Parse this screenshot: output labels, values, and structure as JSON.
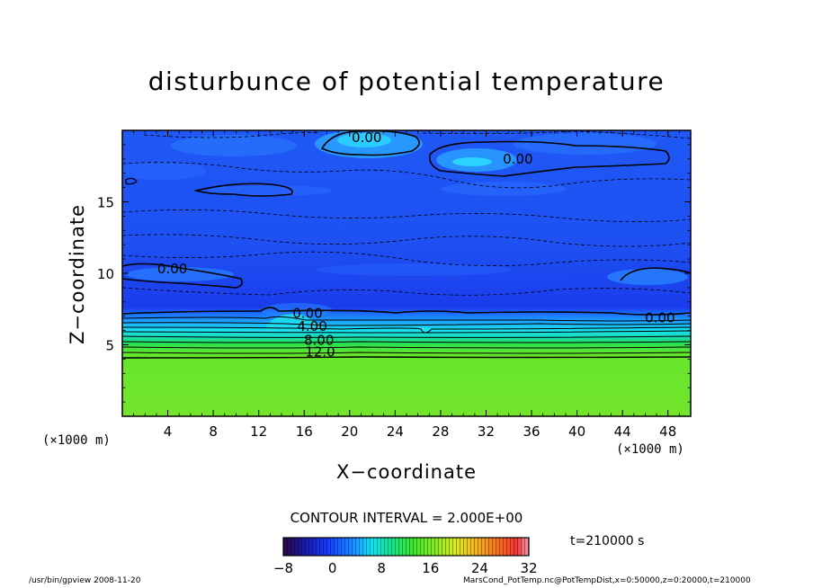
{
  "chart_data": {
    "type": "heatmap",
    "title": "disturbunce of potential temperature",
    "xlabel": "X−coordinate",
    "ylabel": "Z−coordinate",
    "x_unit_left": "(×1000 m)",
    "x_unit_right": "(×1000 m)",
    "xlim": [
      0,
      50
    ],
    "ylim": [
      0,
      20
    ],
    "xticks": [
      4,
      8,
      12,
      16,
      20,
      24,
      28,
      32,
      36,
      40,
      44,
      48
    ],
    "yticks": [
      5,
      10,
      15
    ],
    "contour_interval_label": "CONTOUR INTERVAL = 2.000E+00",
    "contour_labels": [
      {
        "text": "0.00",
        "x": 21.5,
        "z": 19.5
      },
      {
        "text": "0.00",
        "x": 34.8,
        "z": 18.0
      },
      {
        "text": "0.00",
        "x": 4.4,
        "z": 10.3
      },
      {
        "text": "0.00",
        "x": 16.3,
        "z": 7.2
      },
      {
        "text": "0.00",
        "x": 47.3,
        "z": 6.9
      },
      {
        "text": "4.00",
        "x": 16.7,
        "z": 6.3
      },
      {
        "text": "8.00",
        "x": 17.3,
        "z": 5.3
      },
      {
        "text": "12.0",
        "x": 17.4,
        "z": 4.5
      }
    ],
    "colorbar": {
      "min": -8,
      "max": 32,
      "ticks": [
        -8,
        0,
        8,
        16,
        24,
        32
      ]
    },
    "colors": {
      "dark_blue": "#1a3cf0",
      "blue": "#1f5cff",
      "sky": "#1ea0ff",
      "cyan": "#19e4f0",
      "teal": "#17e0b0",
      "green": "#33e33a",
      "lime": "#77e62a"
    }
  },
  "annotations": {
    "time": "t=210000 s",
    "footer_left": "/usr/bin/gpview   2008-11-20",
    "footer_right": "MarsCond_PotTemp.nc@PotTempDist,x=0:50000,z=0:20000,t=210000"
  }
}
